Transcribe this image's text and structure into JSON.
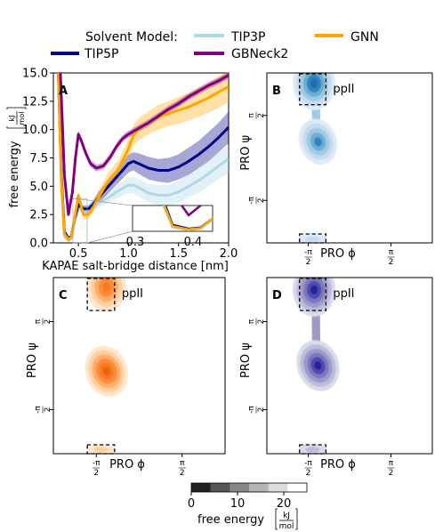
{
  "legend": {
    "title": "Solvent Model:",
    "entries": [
      {
        "name": "TIP5P",
        "color": "#00008b"
      },
      {
        "name": "TIP3P",
        "color": "#add8e6"
      },
      {
        "name": "GBNeck2",
        "color": "#800080"
      },
      {
        "name": "GNN",
        "color": "#ffa500"
      }
    ]
  },
  "chart_data": [
    {
      "panel": "A",
      "type": "line",
      "xlabel": "KAPAE salt-bridge distance [nm]",
      "ylabel": "free energy [kJ/mol]",
      "xlim": [
        0.25,
        2.0
      ],
      "ylim": [
        0,
        15
      ],
      "xticks": [
        "0.5",
        "1.0",
        "1.5",
        "2.0"
      ],
      "yticks": [
        "0.0",
        "2.5",
        "5.0",
        "7.5",
        "10.0",
        "12.5",
        "15.0"
      ],
      "inset": {
        "xlim": [
          0.26,
          0.46
        ],
        "xticks": [
          "0.3",
          "0.4"
        ]
      },
      "series": [
        {
          "name": "TIP5P",
          "color": "#00008b",
          "x": [
            0.3,
            0.33,
            0.36,
            0.4,
            0.43,
            0.46,
            0.5,
            0.55,
            0.6,
            0.65,
            0.7,
            0.8,
            0.9,
            1.0,
            1.05,
            1.1,
            1.2,
            1.3,
            1.4,
            1.5,
            1.6,
            1.7,
            1.8,
            1.9,
            2.0
          ],
          "y": [
            15.0,
            6.0,
            1.0,
            0.4,
            0.6,
            2.0,
            3.4,
            3.0,
            3.0,
            3.4,
            4.0,
            5.0,
            6.0,
            7.0,
            7.2,
            7.0,
            6.6,
            6.4,
            6.4,
            6.7,
            7.2,
            7.8,
            8.5,
            9.3,
            10.2
          ],
          "err": [
            0,
            0.2,
            0.1,
            0.1,
            0.1,
            0.2,
            0.3,
            0.3,
            0.3,
            0.4,
            0.5,
            0.6,
            0.7,
            0.8,
            0.8,
            0.9,
            1.0,
            1.0,
            1.1,
            1.1,
            1.2,
            1.2,
            1.3,
            1.3,
            1.4
          ]
        },
        {
          "name": "TIP3P",
          "color": "#add8e6",
          "x": [
            0.3,
            0.33,
            0.36,
            0.4,
            0.43,
            0.46,
            0.5,
            0.55,
            0.6,
            0.65,
            0.7,
            0.8,
            0.9,
            1.0,
            1.05,
            1.1,
            1.2,
            1.3,
            1.4,
            1.5,
            1.6,
            1.7,
            1.8,
            1.9,
            2.0
          ],
          "y": [
            15.0,
            5.0,
            0.6,
            0.2,
            0.4,
            1.8,
            3.0,
            2.8,
            2.8,
            3.1,
            3.5,
            4.0,
            4.6,
            5.1,
            5.1,
            4.9,
            4.4,
            4.2,
            4.2,
            4.5,
            5.0,
            5.5,
            6.1,
            6.8,
            7.4
          ],
          "err": [
            0,
            0.2,
            0.1,
            0.1,
            0.1,
            0.2,
            0.3,
            0.3,
            0.3,
            0.4,
            0.4,
            0.5,
            0.6,
            0.7,
            0.7,
            0.8,
            0.8,
            0.9,
            0.9,
            1.0,
            1.0,
            1.1,
            1.1,
            1.2,
            1.2
          ]
        },
        {
          "name": "GBNeck2",
          "color": "#800080",
          "x": [
            0.32,
            0.36,
            0.4,
            0.44,
            0.47,
            0.5,
            0.53,
            0.57,
            0.62,
            0.68,
            0.75,
            0.82,
            0.88,
            0.94,
            1.0,
            1.1,
            1.2,
            1.3,
            1.4,
            1.5,
            1.6,
            1.7,
            1.8,
            1.9,
            2.0
          ],
          "y": [
            15.0,
            6.0,
            2.5,
            4.5,
            7.5,
            9.6,
            9.0,
            8.0,
            7.0,
            6.6,
            6.8,
            7.6,
            8.5,
            9.2,
            9.6,
            10.1,
            10.6,
            11.2,
            11.8,
            12.3,
            12.9,
            13.4,
            13.9,
            14.3,
            14.8
          ],
          "err": [
            0,
            0.2,
            0.2,
            0.2,
            0.2,
            0.3,
            0.3,
            0.3,
            0.3,
            0.3,
            0.3,
            0.3,
            0.3,
            0.3,
            0.3,
            0.3,
            0.3,
            0.3,
            0.3,
            0.3,
            0.3,
            0.3,
            0.3,
            0.3,
            0.3
          ]
        },
        {
          "name": "GNN",
          "color": "#ffa500",
          "x": [
            0.3,
            0.33,
            0.36,
            0.4,
            0.43,
            0.46,
            0.5,
            0.55,
            0.6,
            0.65,
            0.7,
            0.8,
            0.9,
            1.0,
            1.05,
            1.1,
            1.2,
            1.3,
            1.4,
            1.5,
            1.6,
            1.7,
            1.8,
            1.9,
            2.0
          ],
          "y": [
            15.0,
            5.5,
            0.8,
            0.3,
            0.5,
            2.0,
            4.2,
            2.5,
            2.5,
            3.2,
            4.0,
            5.5,
            6.5,
            8.3,
            9.5,
            10.0,
            10.6,
            11.1,
            11.4,
            11.7,
            12.0,
            12.4,
            12.8,
            13.3,
            13.8
          ],
          "err": [
            0,
            0.2,
            0.1,
            0.1,
            0.1,
            0.3,
            0.4,
            0.4,
            0.4,
            0.5,
            0.6,
            0.7,
            0.8,
            0.9,
            0.9,
            1.0,
            1.0,
            1.1,
            1.1,
            1.2,
            1.2,
            1.3,
            1.3,
            1.4,
            1.4
          ]
        }
      ]
    },
    {
      "panel": "B",
      "type": "heatmap",
      "model": "TIP5P",
      "cmap": "Blues",
      "xlabel": "PRO ϕ",
      "ylabel": "PRO ψ",
      "xlim": [
        -3.14159,
        3.14159
      ],
      "ylim": [
        -3.14159,
        3.14159
      ],
      "annotation": "ppII",
      "box": {
        "x": [
          -1.9,
          -0.9
        ],
        "y": [
          2.0,
          3.14159
        ]
      },
      "basins": [
        {
          "phi": -1.35,
          "psi": 2.75,
          "depth": 1.0
        },
        {
          "phi": -1.2,
          "psi": 0.6,
          "depth": 0.75
        },
        {
          "phi": -1.4,
          "psi": -3.0,
          "depth": 0.35
        }
      ]
    },
    {
      "panel": "C",
      "type": "heatmap",
      "model": "GNN",
      "cmap": "Oranges",
      "xlabel": "PRO ϕ",
      "ylabel": "PRO ψ",
      "xlim": [
        -3.14159,
        3.14159
      ],
      "ylim": [
        -3.14159,
        3.14159
      ],
      "annotation": "ppII",
      "box": {
        "x": [
          -1.9,
          -0.9
        ],
        "y": [
          2.0,
          3.14159
        ]
      },
      "basins": [
        {
          "phi": -1.2,
          "psi": 2.8,
          "depth": 0.85
        },
        {
          "phi": -1.2,
          "psi": -0.2,
          "depth": 0.95
        },
        {
          "phi": -1.4,
          "psi": -3.0,
          "depth": 0.3
        }
      ]
    },
    {
      "panel": "D",
      "type": "heatmap",
      "model": "TIP3P",
      "cmap": "Purples",
      "xlabel": "PRO ϕ",
      "ylabel": "PRO ψ",
      "xlim": [
        -3.14159,
        3.14159
      ],
      "ylim": [
        -3.14159,
        3.14159
      ],
      "annotation": "ppII",
      "box": {
        "x": [
          -1.9,
          -0.9
        ],
        "y": [
          2.0,
          3.14159
        ]
      },
      "basins": [
        {
          "phi": -1.35,
          "psi": 2.7,
          "depth": 1.0
        },
        {
          "phi": -1.2,
          "psi": 0.0,
          "depth": 0.95
        },
        {
          "phi": -1.4,
          "psi": -3.0,
          "depth": 0.35
        }
      ]
    }
  ],
  "angle_ticks": {
    "neg": "-π/2",
    "pos": "π/2",
    "neg_num": "-π",
    "pos_num": "π",
    "den": "2"
  },
  "colorbar": {
    "levels": [
      0,
      10,
      20
    ],
    "max": 25,
    "label_prefix": "free energy",
    "unit_num": "kJ",
    "unit_den": "mol",
    "colors": [
      "#222222",
      "#555555",
      "#888888",
      "#b5b5b5",
      "#dcdcdc",
      "#ffffff"
    ]
  }
}
